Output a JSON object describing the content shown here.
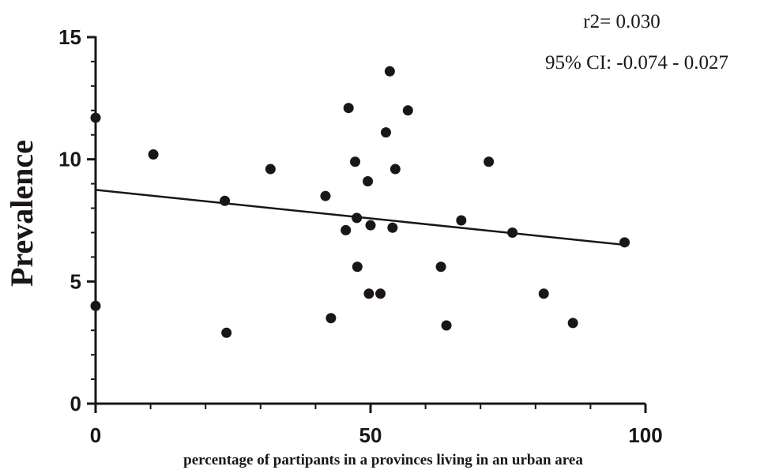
{
  "chart_data": {
    "type": "scatter",
    "title": "",
    "xlabel": "percentage of partipants in a provinces living in an urban area",
    "ylabel": "Prevalence",
    "xlim": [
      0,
      100
    ],
    "ylim": [
      0,
      15
    ],
    "x_ticks": [
      0,
      50,
      100
    ],
    "y_ticks": [
      0,
      5,
      10,
      15
    ],
    "grid": false,
    "colors": {
      "points": "#1a1616",
      "axis": "#1a1616",
      "background": "#ffffff"
    },
    "annotations": [
      "r2= 0.030",
      "95% CI: -0.074 - 0.027"
    ],
    "points": [
      {
        "x": 0,
        "y": 11.7
      },
      {
        "x": 0,
        "y": 4.0
      },
      {
        "x": 10.5,
        "y": 10.2
      },
      {
        "x": 23.5,
        "y": 8.3
      },
      {
        "x": 23.8,
        "y": 2.9
      },
      {
        "x": 31.8,
        "y": 9.6
      },
      {
        "x": 41.8,
        "y": 8.5
      },
      {
        "x": 42.8,
        "y": 3.5
      },
      {
        "x": 45.5,
        "y": 7.1
      },
      {
        "x": 46.0,
        "y": 12.1
      },
      {
        "x": 47.2,
        "y": 9.9
      },
      {
        "x": 47.5,
        "y": 7.6
      },
      {
        "x": 47.6,
        "y": 5.6
      },
      {
        "x": 49.5,
        "y": 9.1
      },
      {
        "x": 49.7,
        "y": 4.5
      },
      {
        "x": 50.0,
        "y": 7.3
      },
      {
        "x": 51.8,
        "y": 4.5
      },
      {
        "x": 52.8,
        "y": 11.1
      },
      {
        "x": 53.5,
        "y": 13.6
      },
      {
        "x": 54.0,
        "y": 7.2
      },
      {
        "x": 54.5,
        "y": 9.6
      },
      {
        "x": 56.8,
        "y": 12.0
      },
      {
        "x": 62.8,
        "y": 5.6
      },
      {
        "x": 63.8,
        "y": 3.2
      },
      {
        "x": 66.5,
        "y": 7.5
      },
      {
        "x": 71.5,
        "y": 9.9
      },
      {
        "x": 75.8,
        "y": 7.0
      },
      {
        "x": 81.5,
        "y": 4.5
      },
      {
        "x": 86.8,
        "y": 3.3
      },
      {
        "x": 96.2,
        "y": 6.6
      }
    ],
    "regression_line": {
      "x": [
        0,
        96.2
      ],
      "y": [
        8.75,
        6.5
      ]
    }
  }
}
